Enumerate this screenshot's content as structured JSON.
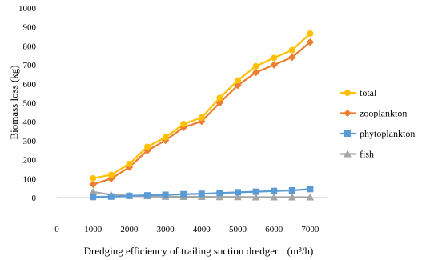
{
  "chart_data": {
    "type": "line",
    "title": "",
    "xlabel": "Dredging efficiency of trailing suction dredger",
    "xlabel_unit": "(m³/h)",
    "ylabel": "Biomass loss (kg)",
    "xlim": [
      0,
      7500
    ],
    "ylim": [
      0,
      1000
    ],
    "x_ticks": [
      0,
      1000,
      2000,
      3000,
      4000,
      5000,
      6000,
      7000
    ],
    "y_ticks": [
      0,
      100,
      200,
      300,
      400,
      500,
      600,
      700,
      800,
      900,
      1000
    ],
    "grid": false,
    "legend_position": "right",
    "x": [
      1000,
      1500,
      2000,
      2500,
      3000,
      3500,
      4000,
      4500,
      5000,
      5500,
      6000,
      6500,
      7000
    ],
    "series": [
      {
        "name": "total",
        "color": "#FFC000",
        "marker": "circle",
        "values": [
          102,
          120,
          178,
          268,
          318,
          388,
          422,
          526,
          618,
          693,
          737,
          778,
          865
        ]
      },
      {
        "name": "zooplankton",
        "color": "#ED7D31",
        "marker": "diamond",
        "values": [
          70,
          100,
          160,
          248,
          302,
          370,
          402,
          500,
          592,
          660,
          700,
          740,
          820
        ]
      },
      {
        "name": "phytoplankton",
        "color": "#5B9BD5",
        "marker": "square",
        "values": [
          3,
          5,
          9,
          12,
          15,
          18,
          20,
          24,
          28,
          31,
          35,
          38,
          45
        ]
      },
      {
        "name": "fish",
        "color": "#A5A5A5",
        "marker": "triangle",
        "values": [
          30,
          15,
          10,
          8,
          5,
          4,
          4,
          3,
          3,
          2,
          2,
          2,
          2
        ]
      }
    ]
  }
}
